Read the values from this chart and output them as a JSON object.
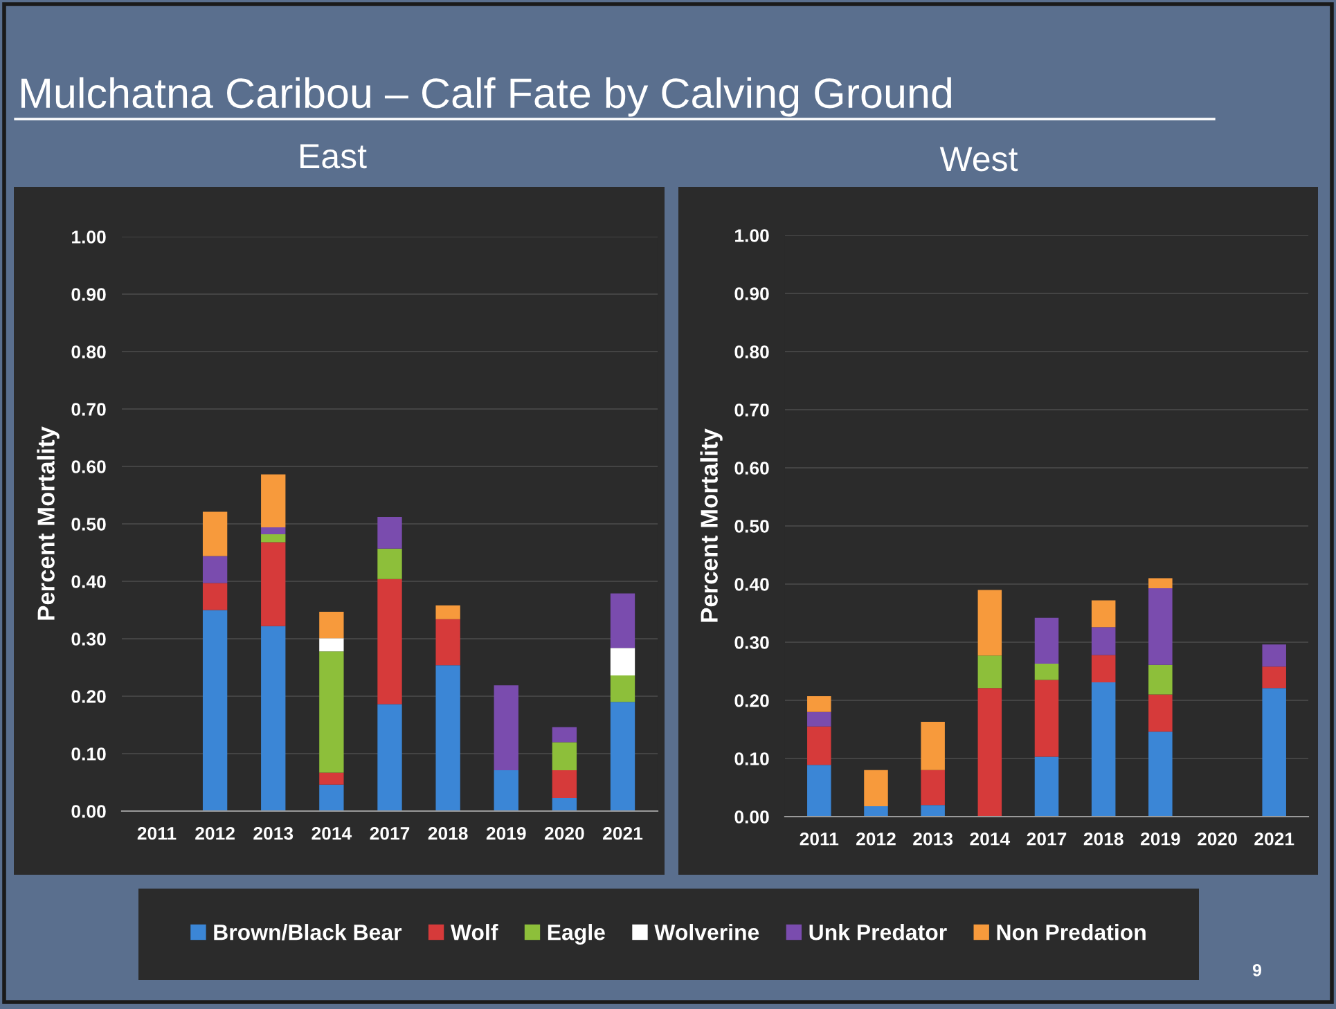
{
  "chart_data": [
    {
      "type": "bar",
      "stacked": true,
      "title": "Mulchatna Caribou – Calf Fate by Calving Ground",
      "subtitle": "East",
      "ylabel": "Percent Mortality",
      "categories": [
        "2011",
        "2012",
        "2013",
        "2014",
        "2017",
        "2018",
        "2019",
        "2020",
        "2021"
      ],
      "ylim": [
        0,
        1.0
      ],
      "yticks": [
        {
          "value": 0,
          "label": "0.00"
        },
        {
          "value": 0.1,
          "label": "0.10"
        },
        {
          "value": 0.2,
          "label": "0.20"
        },
        {
          "value": 0.3,
          "label": "0.30"
        },
        {
          "value": 0.4,
          "label": "0.40"
        },
        {
          "value": 0.5,
          "label": "0.50"
        },
        {
          "value": 0.6,
          "label": "0.60"
        },
        {
          "value": 0.7,
          "label": "0.70"
        },
        {
          "value": 0.8,
          "label": "0.80"
        },
        {
          "value": 0.9,
          "label": "0.90"
        },
        {
          "value": 1.0,
          "label": "1.00"
        }
      ],
      "grid": "y",
      "legend": "bottom",
      "series": [
        {
          "name": "Brown/Black Bear",
          "color": "#3b86d6",
          "values": [
            null,
            0.35,
            0.322,
            0.046,
            0.186,
            0.254,
            0.071,
            0.023,
            0.19
          ]
        },
        {
          "name": "Wolf",
          "color": "#d63a3a",
          "values": [
            null,
            0.047,
            0.146,
            0.021,
            0.218,
            0.08,
            null,
            0.048,
            null
          ]
        },
        {
          "name": "Eagle",
          "color": "#8dbf3a",
          "values": [
            null,
            null,
            0.014,
            0.211,
            0.053,
            null,
            null,
            0.049,
            0.046
          ]
        },
        {
          "name": "Wolverine",
          "color": "#ffffff",
          "values": [
            null,
            null,
            null,
            0.023,
            null,
            null,
            null,
            null,
            0.048
          ]
        },
        {
          "name": "Unk Predator",
          "color": "#7a4cae",
          "values": [
            null,
            0.047,
            0.012,
            null,
            0.055,
            null,
            0.148,
            0.026,
            0.095
          ]
        },
        {
          "name": "Non Predation",
          "color": "#f79a3c",
          "values": [
            null,
            0.077,
            0.092,
            0.046,
            null,
            0.024,
            null,
            null,
            null
          ]
        }
      ]
    },
    {
      "type": "bar",
      "stacked": true,
      "subtitle": "West",
      "ylabel": "Percent Mortality",
      "categories": [
        "2011",
        "2012",
        "2013",
        "2014",
        "2017",
        "2018",
        "2019",
        "2020",
        "2021"
      ],
      "ylim": [
        0,
        1.0
      ],
      "yticks": [
        {
          "value": 0,
          "label": "0.00"
        },
        {
          "value": 0.1,
          "label": "0.10"
        },
        {
          "value": 0.2,
          "label": "0.20"
        },
        {
          "value": 0.3,
          "label": "0.30"
        },
        {
          "value": 0.4,
          "label": "0.40"
        },
        {
          "value": 0.5,
          "label": "0.50"
        },
        {
          "value": 0.6,
          "label": "0.60"
        },
        {
          "value": 0.7,
          "label": "0.70"
        },
        {
          "value": 0.8,
          "label": "0.80"
        },
        {
          "value": 0.9,
          "label": "0.90"
        },
        {
          "value": 1.0,
          "label": "1.00"
        }
      ],
      "grid": "y",
      "annotations": [
        "9"
      ],
      "series": [
        {
          "color": "#3b86d6",
          "values": [
            0.089,
            0.018,
            0.02,
            null,
            0.103,
            0.231,
            0.146,
            null,
            0.221
          ]
        },
        {
          "color": "#d63a3a",
          "values": [
            0.066,
            null,
            0.06,
            0.221,
            0.132,
            0.047,
            0.064,
            null,
            0.037
          ]
        },
        {
          "color": "#8dbf3a",
          "values": [
            null,
            null,
            null,
            0.056,
            0.028,
            null,
            0.051,
            null,
            null
          ]
        },
        {
          "color": "#7a4cae",
          "values": [
            0.025,
            null,
            null,
            null,
            0.079,
            0.048,
            0.132,
            null,
            0.038
          ]
        },
        {
          "color": "#f79a3c",
          "values": [
            0.027,
            0.062,
            0.083,
            0.113,
            null,
            0.046,
            0.017,
            null,
            null
          ]
        }
      ]
    }
  ]
}
